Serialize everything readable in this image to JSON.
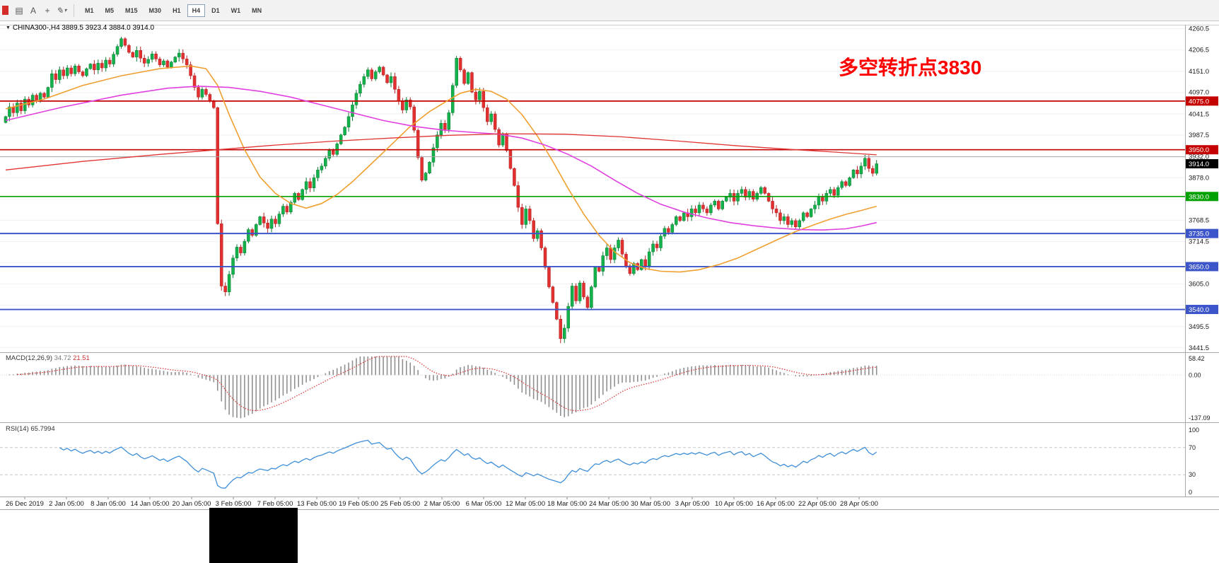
{
  "toolbar": {
    "icons": {
      "menu": "▤",
      "text_tool": "A",
      "crosshair": "+",
      "draw": "✎",
      "dropdown": "▾",
      "chart_marker": "▼"
    },
    "timeframes": [
      "M1",
      "M5",
      "M15",
      "M30",
      "H1",
      "H4",
      "D1",
      "W1",
      "MN"
    ],
    "active_timeframe": "H4"
  },
  "chart": {
    "symbol_line": "CHINA300-,H4 3889.5 3923.4 3884.0 3914.0",
    "annotation": "多空转折点3830",
    "annotation_color": "#ff0000",
    "price_axis": {
      "visible_ticks": [
        4260.5,
        4206.5,
        4151.0,
        4097.0,
        4041.5,
        3987.5,
        3932.0,
        3878.0,
        3768.5,
        3714.5,
        3605.0,
        3495.5,
        3441.5
      ],
      "grid_top": 4260.5,
      "grid_step": 54.6,
      "grid_count": 16
    },
    "current_price": 3914.0,
    "current_price_badge_color": "#000000",
    "hlines": [
      {
        "price": 4075.0,
        "color": "#c40000",
        "width": 1.7,
        "badge": true
      },
      {
        "price": 3950.0,
        "color": "#c40000",
        "width": 1.7,
        "badge": true
      },
      {
        "price": 3932.0,
        "color": "#aaaaaa",
        "width": 1.0,
        "badge": false
      },
      {
        "price": 3830.0,
        "color": "#00a000",
        "width": 1.7,
        "badge": true
      },
      {
        "price": 3735.0,
        "color": "#3c55c8",
        "width": 1.9,
        "badge": true
      },
      {
        "price": 3650.0,
        "color": "#3c55c8",
        "width": 1.9,
        "badge": true
      },
      {
        "price": 3540.0,
        "color": "#3c55c8",
        "width": 1.9,
        "badge": true
      }
    ],
    "candles": {
      "type": "candlestick",
      "up_color": "#13b24a",
      "down_color": "#e23030",
      "up_edge": "#0b7a33",
      "down_edge": "#b02424",
      "last_ohlc": [
        3889.5,
        3923.4,
        3884.0,
        3914.0
      ],
      "closes": [
        4035,
        4060,
        4045,
        4070,
        4050,
        4080,
        4065,
        4090,
        4075,
        4095,
        4085,
        4110,
        4145,
        4130,
        4155,
        4140,
        4160,
        4145,
        4165,
        4150,
        4140,
        4158,
        4170,
        4155,
        4172,
        4160,
        4180,
        4170,
        4195,
        4215,
        4235,
        4218,
        4200,
        4188,
        4205,
        4185,
        4172,
        4182,
        4196,
        4183,
        4168,
        4178,
        4162,
        4175,
        4188,
        4198,
        4183,
        4168,
        4140,
        4110,
        4085,
        4105,
        4092,
        4075,
        4058,
        3760,
        3600,
        3585,
        3630,
        3672,
        3700,
        3685,
        3715,
        3745,
        3730,
        3758,
        3778,
        3762,
        3748,
        3772,
        3760,
        3785,
        3805,
        3790,
        3815,
        3838,
        3822,
        3848,
        3868,
        3852,
        3878,
        3898,
        3908,
        3928,
        3948,
        3938,
        3965,
        3988,
        4008,
        4035,
        4065,
        4095,
        4118,
        4138,
        4155,
        4132,
        4150,
        4162,
        4142,
        4122,
        4138,
        4105,
        4075,
        4052,
        4078,
        4060,
        4000,
        3930,
        3872,
        3890,
        3918,
        3955,
        3988,
        4018,
        4002,
        4045,
        4115,
        4185,
        4155,
        4120,
        4148,
        4098,
        4078,
        4100,
        4058,
        4022,
        4042,
        4002,
        3962,
        3990,
        3948,
        3902,
        3858,
        3802,
        3758,
        3798,
        3768,
        3722,
        3742,
        3698,
        3648,
        3598,
        3558,
        3515,
        3465,
        3492,
        3548,
        3600,
        3562,
        3608,
        3572,
        3545,
        3598,
        3648,
        3638,
        3678,
        3698,
        3668,
        3698,
        3718,
        3682,
        3652,
        3632,
        3658,
        3642,
        3668,
        3652,
        3688,
        3708,
        3698,
        3728,
        3748,
        3738,
        3758,
        3778,
        3768,
        3788,
        3778,
        3798,
        3788,
        3808,
        3798,
        3788,
        3808,
        3818,
        3798,
        3818,
        3828,
        3838,
        3818,
        3838,
        3848,
        3828,
        3843,
        3823,
        3838,
        3853,
        3838,
        3818,
        3798,
        3788,
        3768,
        3778,
        3758,
        3768,
        3752,
        3768,
        3788,
        3778,
        3798,
        3808,
        3828,
        3818,
        3838,
        3848,
        3833,
        3853,
        3868,
        3858,
        3878,
        3898,
        3888,
        3908,
        3928,
        3902,
        3889.5,
        3914
      ]
    },
    "moving_averages": [
      {
        "name": "ma-fast-orange",
        "color": "#f0a030",
        "width": 1.6,
        "points": [
          [
            0,
            4055
          ],
          [
            10,
            4080
          ],
          [
            20,
            4115
          ],
          [
            30,
            4140
          ],
          [
            40,
            4158
          ],
          [
            48,
            4165
          ],
          [
            52,
            4158
          ],
          [
            55,
            4115
          ],
          [
            58,
            4040
          ],
          [
            62,
            3950
          ],
          [
            66,
            3880
          ],
          [
            70,
            3838
          ],
          [
            74,
            3812
          ],
          [
            78,
            3800
          ],
          [
            82,
            3812
          ],
          [
            86,
            3835
          ],
          [
            90,
            3868
          ],
          [
            95,
            3915
          ],
          [
            100,
            3962
          ],
          [
            105,
            4010
          ],
          [
            110,
            4048
          ],
          [
            115,
            4078
          ],
          [
            118,
            4095
          ],
          [
            122,
            4105
          ],
          [
            126,
            4100
          ],
          [
            130,
            4080
          ],
          [
            134,
            4040
          ],
          [
            138,
            3985
          ],
          [
            142,
            3920
          ],
          [
            146,
            3850
          ],
          [
            150,
            3785
          ],
          [
            154,
            3730
          ],
          [
            158,
            3688
          ],
          [
            162,
            3660
          ],
          [
            166,
            3645
          ],
          [
            170,
            3638
          ],
          [
            175,
            3636
          ],
          [
            180,
            3642
          ],
          [
            185,
            3655
          ],
          [
            190,
            3672
          ],
          [
            195,
            3695
          ],
          [
            200,
            3718
          ],
          [
            205,
            3740
          ],
          [
            210,
            3758
          ],
          [
            214,
            3772
          ],
          [
            218,
            3784
          ],
          [
            222,
            3794
          ],
          [
            226,
            3805
          ]
        ]
      },
      {
        "name": "ma-mid-magenta",
        "color": "#e040e0",
        "width": 1.6,
        "points": [
          [
            0,
            4025
          ],
          [
            15,
            4060
          ],
          [
            30,
            4090
          ],
          [
            42,
            4108
          ],
          [
            50,
            4113
          ],
          [
            58,
            4110
          ],
          [
            66,
            4100
          ],
          [
            74,
            4085
          ],
          [
            82,
            4065
          ],
          [
            90,
            4045
          ],
          [
            98,
            4025
          ],
          [
            106,
            4010
          ],
          [
            114,
            4000
          ],
          [
            122,
            3994
          ],
          [
            128,
            3990
          ],
          [
            134,
            3980
          ],
          [
            140,
            3962
          ],
          [
            146,
            3938
          ],
          [
            152,
            3908
          ],
          [
            158,
            3872
          ],
          [
            164,
            3838
          ],
          [
            170,
            3810
          ],
          [
            176,
            3790
          ],
          [
            182,
            3775
          ],
          [
            188,
            3763
          ],
          [
            194,
            3755
          ],
          [
            200,
            3749
          ],
          [
            206,
            3745
          ],
          [
            212,
            3744
          ],
          [
            218,
            3747
          ],
          [
            222,
            3754
          ],
          [
            226,
            3763
          ]
        ]
      },
      {
        "name": "ma-slow-red",
        "color": "#e03535",
        "width": 1.3,
        "points": [
          [
            0,
            3898
          ],
          [
            20,
            3920
          ],
          [
            40,
            3938
          ],
          [
            55,
            3950
          ],
          [
            70,
            3962
          ],
          [
            85,
            3972
          ],
          [
            100,
            3980
          ],
          [
            115,
            3987
          ],
          [
            130,
            3991
          ],
          [
            145,
            3990
          ],
          [
            160,
            3983
          ],
          [
            175,
            3972
          ],
          [
            190,
            3960
          ],
          [
            205,
            3950
          ],
          [
            215,
            3944
          ],
          [
            226,
            3937
          ]
        ]
      }
    ],
    "time_axis": {
      "labels": [
        "26 Dec 2019",
        "2 Jan 05:00",
        "8 Jan 05:00",
        "14 Jan 05:00",
        "20 Jan 05:00",
        "3 Feb 05:00",
        "7 Feb 05:00",
        "13 Feb 05:00",
        "19 Feb 05:00",
        "25 Feb 05:00",
        "2 Mar 05:00",
        "6 Mar 05:00",
        "12 Mar 05:00",
        "18 Mar 05:00",
        "24 Mar 05:00",
        "30 Mar 05:00",
        "3 Apr 05:00",
        "10 Apr 05:00",
        "16 Apr 05:00",
        "22 Apr 05:00",
        "28 Apr 05:00"
      ]
    }
  },
  "macd": {
    "name": "MACD(12,26,9)",
    "value_main": "34.72",
    "value_signal": "21.51",
    "axis_max": "58.42",
    "axis_zero": "0.00",
    "axis_min": "-137.09",
    "range": [
      -137.09,
      58.42
    ],
    "params": [
      12,
      26,
      9
    ],
    "histogram_color": "#909090",
    "signal_color": "#d93030"
  },
  "rsi": {
    "name": "RSI(14)",
    "value": "65.7994",
    "period": 14,
    "axis": [
      "100",
      "70",
      "30",
      "0"
    ],
    "levels": [
      70,
      30
    ],
    "line_color": "#3f8fd8"
  }
}
